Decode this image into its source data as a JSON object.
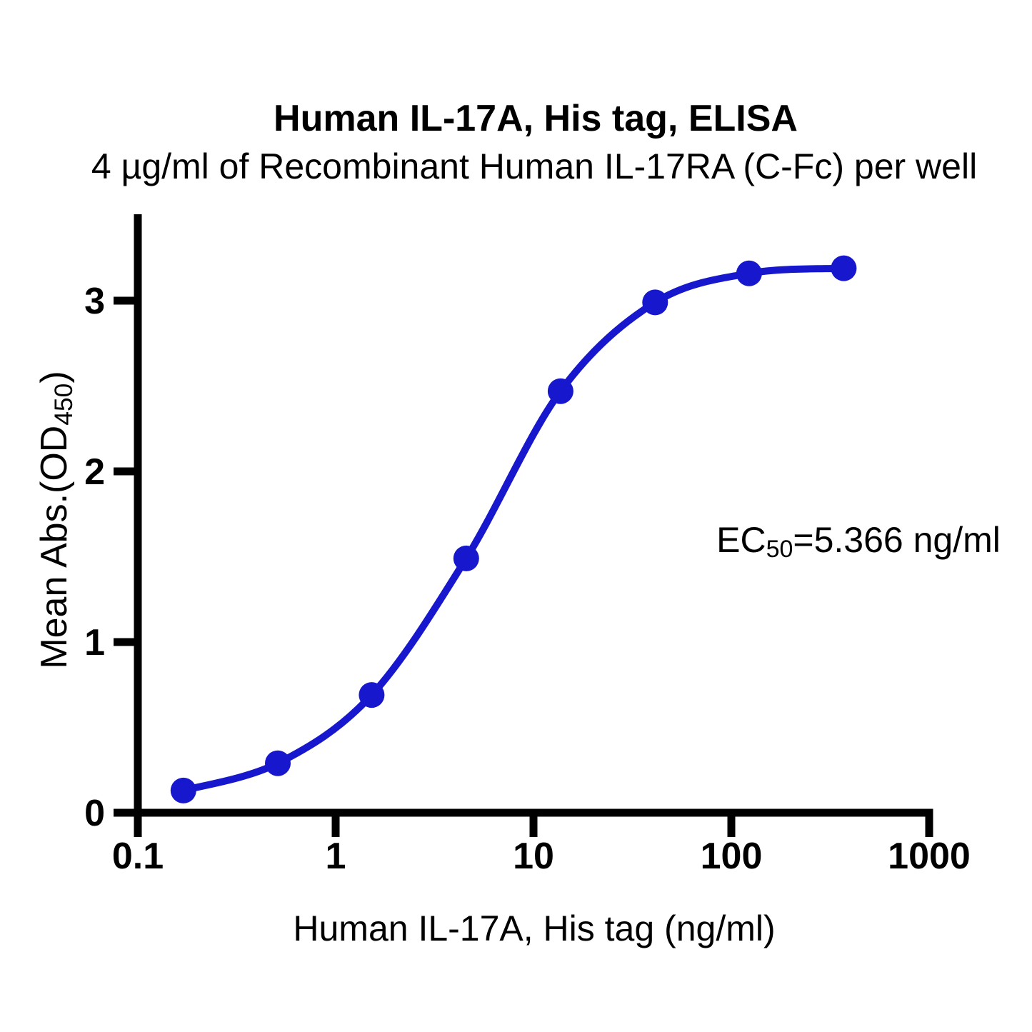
{
  "figure": {
    "title": "Human IL-17A, His tag, ELISA",
    "subtitle": "4 µg/ml of Recombinant Human IL-17RA (C-Fc) per well"
  },
  "chart_data": {
    "type": "scatter",
    "title": "Human IL-17A, His tag, ELISA",
    "subtitle": "4 µg/ml of Recombinant Human IL-17RA (C-Fc) per well",
    "xlabel": "Human IL-17A, His tag (ng/ml)",
    "ylabel": "Mean Abs.(OD450)",
    "ylabel_parts": {
      "pre": "Mean Abs.(OD",
      "sub": "450",
      "post": ")"
    },
    "x_scale": "log10",
    "xlim": [
      0.1,
      1000
    ],
    "ylim": [
      0,
      3.5
    ],
    "grid": false,
    "legend": false,
    "x_ticks": [
      {
        "v": 0.1,
        "label": "0.1"
      },
      {
        "v": 1,
        "label": "1"
      },
      {
        "v": 10,
        "label": "10"
      },
      {
        "v": 100,
        "label": "100"
      },
      {
        "v": 1000,
        "label": "1000"
      }
    ],
    "y_ticks": [
      {
        "v": 0,
        "label": "0"
      },
      {
        "v": 1,
        "label": "1"
      },
      {
        "v": 2,
        "label": "2"
      },
      {
        "v": 3,
        "label": "3"
      }
    ],
    "series": [
      {
        "x": [
          0.17,
          0.51,
          1.52,
          4.57,
          13.7,
          41.2,
          123,
          370
        ],
        "y": [
          0.13,
          0.29,
          0.69,
          1.49,
          2.47,
          2.99,
          3.16,
          3.19
        ],
        "marker": "circle",
        "line": "smooth-sigmoid-fit",
        "color": "#1717cd"
      }
    ],
    "annotation": {
      "text": "EC50=5.366 ng/ml",
      "ec50_ng_ml": 5.366,
      "parts": {
        "pre": "EC",
        "sub": "50",
        "post": "=5.366 ng/ml"
      }
    }
  },
  "colors": {
    "curve_blue": "#1717cd",
    "axis_black": "#000000",
    "background": "#ffffff"
  }
}
